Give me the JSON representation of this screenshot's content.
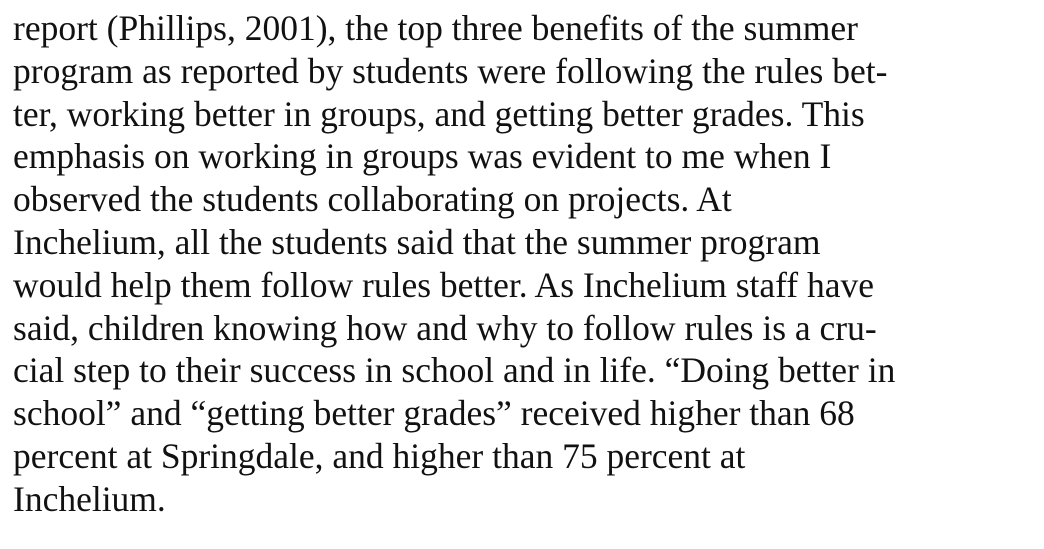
{
  "lines": [
    "report (Phillips, 2001), the top three benefits of the summer",
    "program as reported by students were following the rules bet-",
    "ter, working better in groups, and getting better grades. This",
    "emphasis on working in groups was evident to me when I",
    "observed the students collaborating on projects. At",
    "Inchelium, all the students said that the summer program",
    "would help them follow rules better. As Inchelium staff have",
    "said, children knowing how and why to follow rules is a cru-",
    "cial step to their success in school and in life. “Doing better in",
    "school” and “getting better grades” received higher than 68",
    "percent at Springdale, and higher than 75 percent at",
    "Inchelium."
  ]
}
